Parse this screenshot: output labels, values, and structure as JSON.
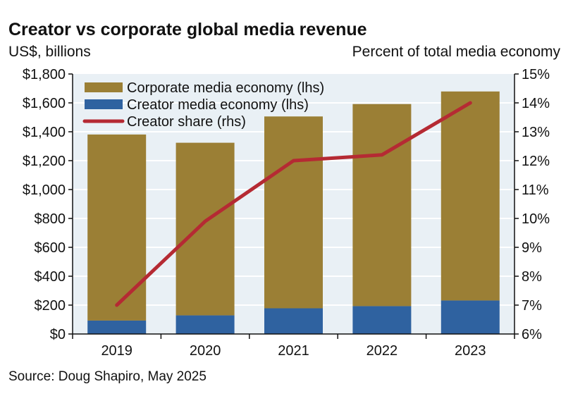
{
  "chart_data": {
    "type": "bar",
    "title": "Creator vs corporate global media revenue",
    "ylabel": "US$, billions",
    "y2label": "Percent of total media economy",
    "categories": [
      "2019",
      "2020",
      "2021",
      "2022",
      "2023"
    ],
    "ylim": [
      0,
      1800
    ],
    "yticks": [
      0,
      200,
      400,
      600,
      800,
      1000,
      1200,
      1400,
      1600,
      1800
    ],
    "ytick_labels": [
      "$0",
      "$200",
      "$400",
      "$600",
      "$800",
      "$1,000",
      "$1,200",
      "$1,400",
      "$1,600",
      "$1,800"
    ],
    "y2lim": [
      6,
      15
    ],
    "y2ticks": [
      6,
      7,
      8,
      9,
      10,
      11,
      12,
      13,
      14,
      15
    ],
    "y2tick_labels": [
      "6%",
      "7%",
      "8%",
      "9%",
      "10%",
      "11%",
      "12%",
      "13%",
      "14%",
      "15%"
    ],
    "series": [
      {
        "name": "Corporate media economy (lhs)",
        "type": "stacked-bar",
        "axis": "left",
        "values": [
          1288,
          1195,
          1328,
          1399,
          1447
        ],
        "color": "#9b7f35"
      },
      {
        "name": "Creator media economy (lhs)",
        "type": "stacked-bar",
        "axis": "left",
        "values": [
          93,
          129,
          178,
          193,
          232
        ],
        "color": "#2f62a0"
      },
      {
        "name": "Creator share (rhs)",
        "type": "line",
        "axis": "right",
        "values": [
          7.0,
          9.9,
          12.0,
          12.2,
          14.0
        ],
        "color": "#b52a33"
      }
    ],
    "grid": true,
    "legend": "top-left",
    "source": "Source: Doug Shapiro, May 2025"
  }
}
